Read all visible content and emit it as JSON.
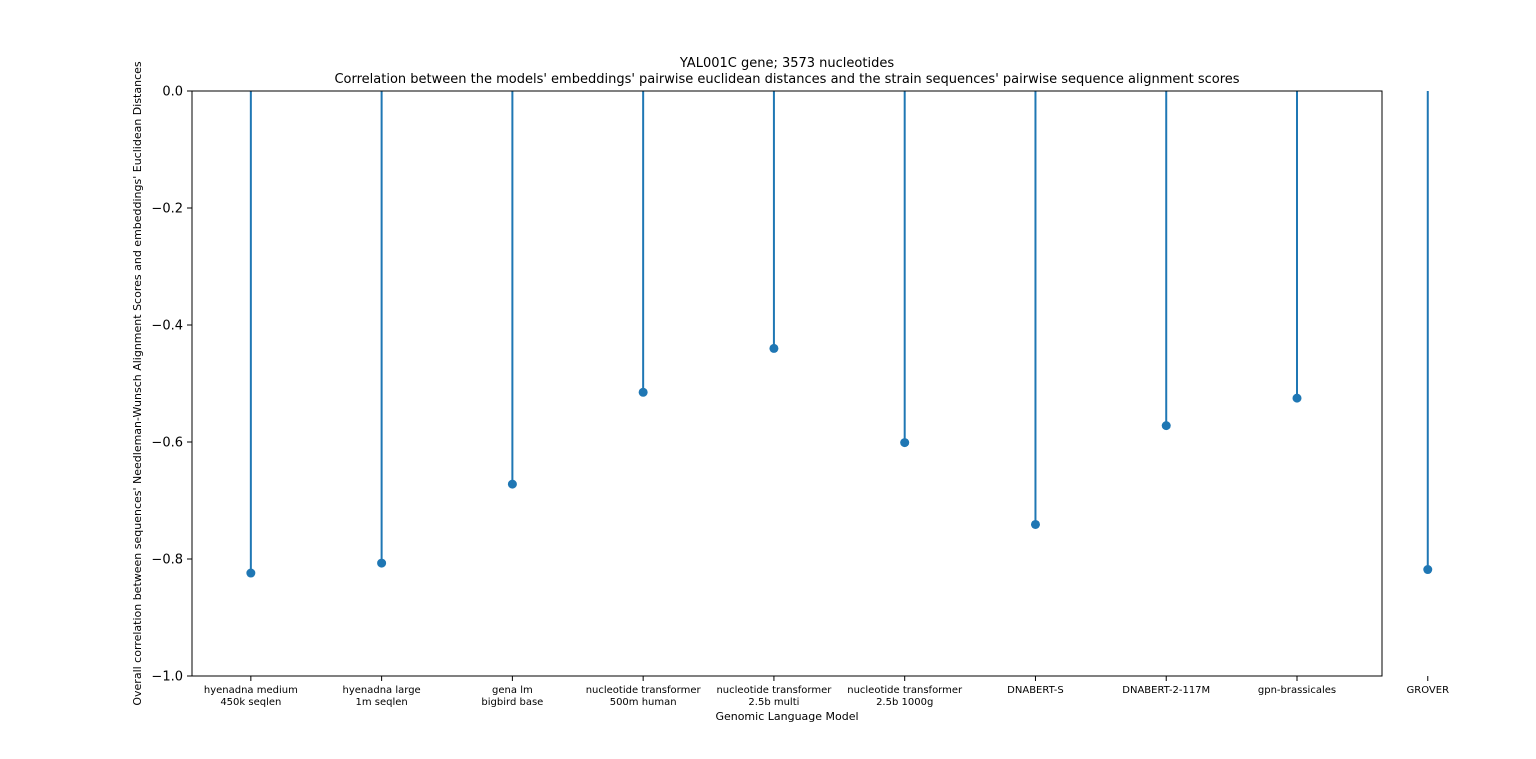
{
  "chart_data": {
    "type": "stem",
    "title": "YAL001C gene; 3573 nucleotides",
    "subtitle": "Correlation between the models' embeddings' pairwise euclidean distances and the strain sequences' pairwise sequence alignment scores",
    "xlabel": "Genomic Language Model",
    "ylabel": "Overall correlation between sequences' Needleman-Wunsch Alignment Scores and embeddings' Euclidean Distances",
    "categories": [
      [
        "hyenadna medium",
        "450k seqlen"
      ],
      [
        "hyenadna large",
        "1m seqlen"
      ],
      [
        "gena lm",
        "bigbird base"
      ],
      [
        "nucleotide transformer",
        "500m human"
      ],
      [
        "nucleotide transformer",
        "2.5b multi"
      ],
      [
        "nucleotide transformer",
        "2.5b 1000g"
      ],
      [
        "DNABERT-S"
      ],
      [
        "DNABERT-2-117M"
      ],
      [
        "gpn-brassicales"
      ],
      [
        "GROVER"
      ]
    ],
    "values": [
      -0.824,
      -0.807,
      -0.672,
      -0.515,
      -0.44,
      -0.601,
      -0.741,
      -0.572,
      -0.525,
      -0.818
    ],
    "ylim": [
      -1.0,
      0.0
    ],
    "yticks": [
      "0.0",
      "−0.2",
      "−0.4",
      "−0.6",
      "−0.8",
      "−1.0"
    ],
    "ytick_values": [
      0.0,
      -0.2,
      -0.4,
      -0.6,
      -0.8,
      -1.0
    ],
    "grid": false,
    "color": "#1f77b4"
  }
}
